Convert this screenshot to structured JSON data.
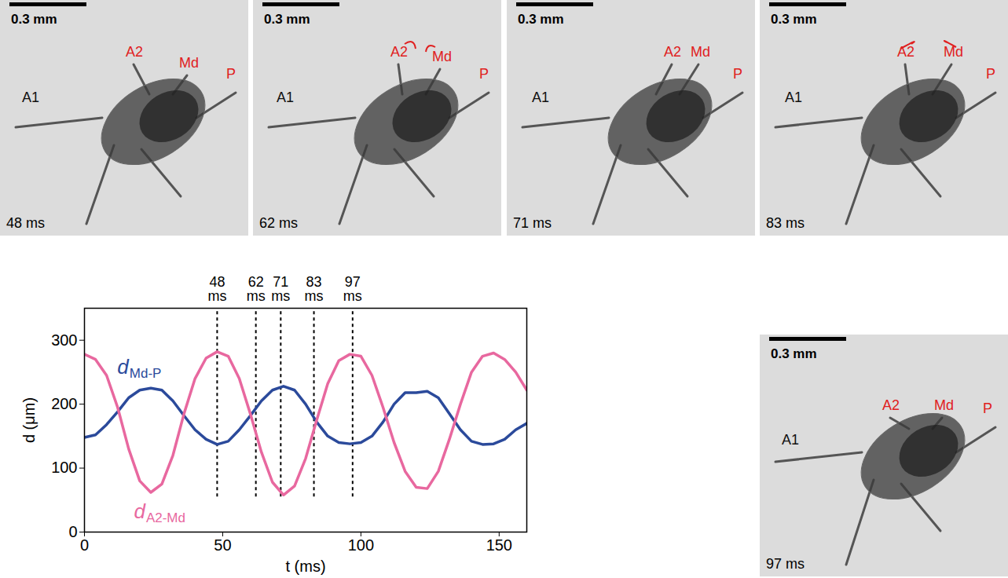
{
  "chart_data": {
    "type": "line",
    "x_label": "t (ms)",
    "y_label": "d (μm)",
    "xlim": [
      0,
      160
    ],
    "ylim": [
      0,
      350
    ],
    "xticks": [
      0,
      50,
      100,
      150
    ],
    "yticks": [
      0,
      100,
      200,
      300
    ],
    "x": [
      0,
      4,
      8,
      12,
      16,
      20,
      24,
      28,
      32,
      36,
      40,
      44,
      48,
      52,
      56,
      60,
      64,
      68,
      72,
      76,
      80,
      84,
      88,
      92,
      96,
      100,
      104,
      108,
      112,
      116,
      120,
      124,
      128,
      132,
      136,
      140,
      144,
      148,
      152,
      156,
      160
    ],
    "series": [
      {
        "label": {
          "text": "d",
          "subscript": "Md-P",
          "x": 16,
          "y": 258
        },
        "color": "#2b4a9b",
        "values": [
          148,
          152,
          168,
          188,
          210,
          222,
          225,
          222,
          205,
          182,
          160,
          145,
          137,
          142,
          160,
          182,
          205,
          222,
          228,
          222,
          200,
          172,
          150,
          140,
          138,
          140,
          150,
          172,
          200,
          218,
          218,
          220,
          210,
          185,
          160,
          142,
          137,
          138,
          145,
          160,
          170
        ]
      },
      {
        "label": {
          "text": "d",
          "subscript": "A2-Md",
          "x": 22,
          "y": 32
        },
        "color": "#e8689f",
        "values": [
          278,
          270,
          245,
          195,
          130,
          80,
          62,
          75,
          120,
          185,
          240,
          272,
          282,
          275,
          240,
          185,
          125,
          78,
          58,
          72,
          115,
          175,
          232,
          268,
          278,
          275,
          245,
          195,
          140,
          95,
          70,
          68,
          95,
          145,
          200,
          250,
          275,
          280,
          270,
          250,
          222
        ]
      }
    ],
    "vlines": {
      "x": [
        48,
        62,
        71,
        83,
        97
      ],
      "labels": [
        "48 ms",
        "62 ms",
        "71 ms",
        "83 ms",
        "97 ms"
      ],
      "ymin": 55
    }
  },
  "photos": [
    {
      "time": "48 ms",
      "scale_bar": "0.3 mm",
      "labels": [
        {
          "text": "A1",
          "color": "#111111"
        },
        {
          "text": "A2",
          "color": "#e02020"
        },
        {
          "text": "Md",
          "color": "#e02020"
        },
        {
          "text": "P",
          "color": "#e02020"
        }
      ]
    },
    {
      "time": "62 ms",
      "scale_bar": "0.3 mm",
      "labels": [
        {
          "text": "A1",
          "color": "#111111"
        },
        {
          "text": "A2",
          "color": "#e02020"
        },
        {
          "text": "Md",
          "color": "#e02020"
        },
        {
          "text": "P",
          "color": "#e02020"
        }
      ]
    },
    {
      "time": "71 ms",
      "scale_bar": "0.3 mm",
      "labels": [
        {
          "text": "A1",
          "color": "#111111"
        },
        {
          "text": "A2",
          "color": "#e02020"
        },
        {
          "text": "Md",
          "color": "#e02020"
        },
        {
          "text": "P",
          "color": "#e02020"
        }
      ]
    },
    {
      "time": "83 ms",
      "scale_bar": "0.3 mm",
      "labels": [
        {
          "text": "A1",
          "color": "#111111"
        },
        {
          "text": "A2",
          "color": "#e02020"
        },
        {
          "text": "Md",
          "color": "#e02020"
        },
        {
          "text": "P",
          "color": "#e02020"
        }
      ]
    },
    {
      "time": "97 ms",
      "scale_bar": "0.3 mm",
      "labels": [
        {
          "text": "A1",
          "color": "#111111"
        },
        {
          "text": "A2",
          "color": "#e02020"
        },
        {
          "text": "Md",
          "color": "#e02020"
        },
        {
          "text": "P",
          "color": "#e02020"
        }
      ]
    }
  ]
}
